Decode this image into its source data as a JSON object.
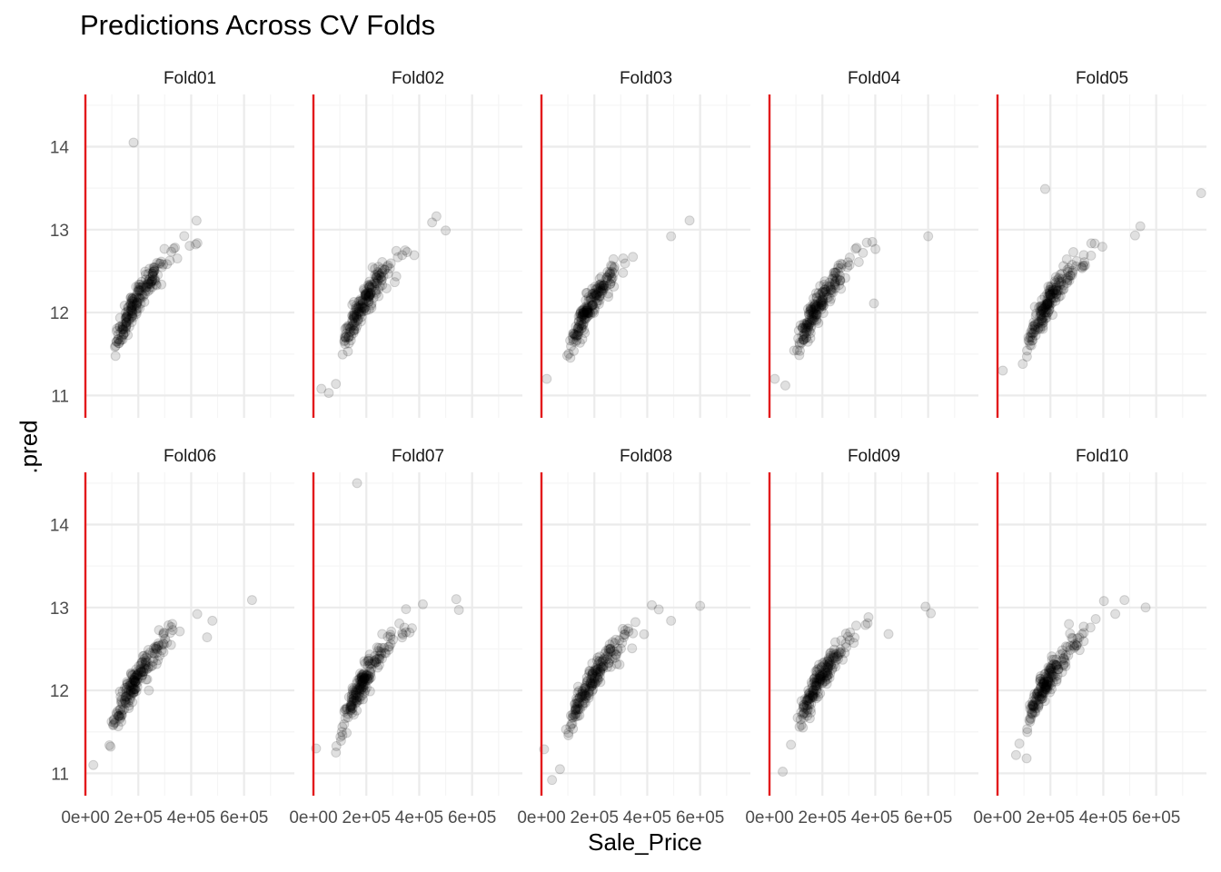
{
  "title": "Predictions Across CV Folds",
  "colors": {
    "grid_major": "#ebebeb",
    "grid_minor": "#f5f5f5",
    "vline": "#e31a1c",
    "point": "#000000",
    "point_alpha": 0.12
  },
  "chart_data": {
    "type": "scatter",
    "title": "Predictions Across CV Folds",
    "xlabel": "Sale_Price",
    "ylabel": ".pred",
    "facets": [
      "Fold01",
      "Fold02",
      "Fold03",
      "Fold04",
      "Fold05",
      "Fold06",
      "Fold07",
      "Fold08",
      "Fold09",
      "Fold10"
    ],
    "facet_rows": 2,
    "facet_cols": 5,
    "xlim": [
      0,
      790000
    ],
    "ylim": [
      10.73,
      14.63
    ],
    "x_ticks": [
      0,
      200000,
      400000,
      600000
    ],
    "x_tick_labels": [
      "0e+00",
      "2e+05",
      "4e+05",
      "6e+05"
    ],
    "y_ticks": [
      11,
      12,
      13,
      14
    ],
    "y_tick_labels": [
      "11",
      "12",
      "13",
      "14"
    ],
    "vline_x": 0,
    "vline_color": "#e31a1c",
    "grid": true,
    "point_alpha": 0.12,
    "outliers": {
      "Fold01": [
        [
          182000,
          14.05
        ]
      ],
      "Fold02": [
        [
          30000,
          11.08
        ],
        [
          58000,
          11.03
        ],
        [
          465000,
          13.16
        ],
        [
          500000,
          12.99
        ]
      ],
      "Fold03": [
        [
          560000,
          13.11
        ],
        [
          490000,
          12.92
        ],
        [
          20000,
          11.2
        ]
      ],
      "Fold04": [
        [
          600000,
          12.92
        ],
        [
          395000,
          12.11
        ],
        [
          20000,
          11.2
        ],
        [
          60000,
          11.12
        ]
      ],
      "Fold05": [
        [
          180000,
          13.49
        ],
        [
          770000,
          13.44
        ],
        [
          540000,
          13.04
        ],
        [
          520000,
          12.93
        ],
        [
          20000,
          11.3
        ]
      ],
      "Fold06": [
        [
          630000,
          13.09
        ],
        [
          480000,
          12.84
        ],
        [
          460000,
          12.64
        ],
        [
          240000,
          12.0
        ],
        [
          30000,
          11.1
        ]
      ],
      "Fold07": [
        [
          165000,
          14.5
        ],
        [
          540000,
          13.1
        ],
        [
          550000,
          12.97
        ],
        [
          350000,
          12.98
        ],
        [
          10000,
          11.3
        ],
        [
          85000,
          11.25
        ]
      ],
      "Fold08": [
        [
          600000,
          13.02
        ],
        [
          490000,
          12.84
        ],
        [
          40000,
          10.92
        ],
        [
          70000,
          11.05
        ],
        [
          10000,
          11.29
        ]
      ],
      "Fold09": [
        [
          590000,
          13.01
        ],
        [
          610000,
          12.93
        ],
        [
          450000,
          12.68
        ],
        [
          50000,
          11.02
        ]
      ],
      "Fold10": [
        [
          480000,
          13.09
        ],
        [
          560000,
          13.0
        ],
        [
          270000,
          12.8
        ],
        [
          110000,
          11.18
        ],
        [
          70000,
          11.22
        ]
      ]
    }
  }
}
